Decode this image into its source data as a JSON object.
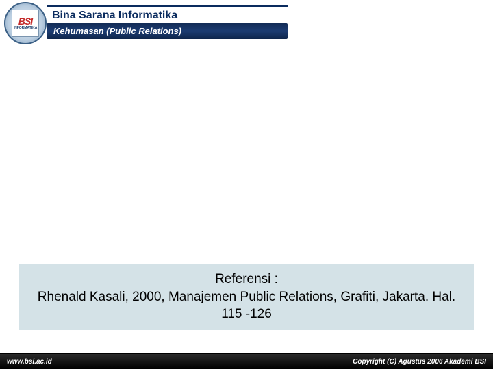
{
  "header": {
    "logo": {
      "acronym": "BSI",
      "subtext": "INFORMATIKA"
    },
    "institution": "Bina Sarana Informatika",
    "course": "Kehumasan (Public Relations)"
  },
  "reference": {
    "title": "Referensi :",
    "citation": "Rhenald Kasali, 2000, Manajemen Public Relations, Grafiti, Jakarta. Hal. 115 -126"
  },
  "footer": {
    "website": "www.bsi.ac.id",
    "copyright": "Copyright (C) Agustus 2006 Akademi BSI"
  },
  "colors": {
    "header_blue": "#0a2b5e",
    "course_bar_bg": "#1c3c72",
    "reference_bg": "#d4e2e7",
    "footer_bg": "#000000",
    "logo_red": "#c52b2b"
  }
}
